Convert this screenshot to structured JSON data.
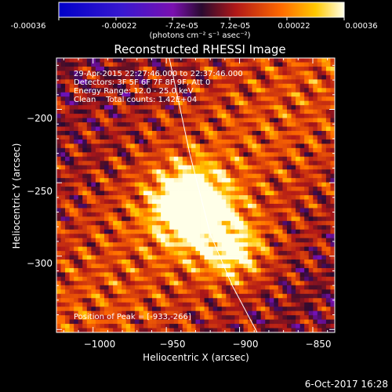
{
  "colorbar": {
    "ticks": [
      "-0.00036",
      "-0.00022",
      "-7.2e-05",
      "7.2e-05",
      "0.00022",
      "0.00036"
    ],
    "unit_label": "(photons cm⁻² s⁻¹ asec⁻²)"
  },
  "chart_data": {
    "type": "heatmap",
    "title": "Reconstructed RHESSI Image",
    "xlabel": "Heliocentric X (arcsec)",
    "ylabel": "Heliocentric Y (arcsec)",
    "xlim": [
      -1025,
      -835
    ],
    "ylim": [
      -352,
      -165
    ],
    "x_ticks": [
      -1000,
      -950,
      -900,
      -850
    ],
    "y_ticks": [
      -200,
      -250,
      -300
    ],
    "x_tick_labels": [
      "−1000",
      "−950",
      "−900",
      "−850"
    ],
    "y_tick_labels": [
      "−200",
      "−250",
      "−300"
    ],
    "colorscale_range": [
      -0.00036,
      0.00036
    ],
    "peak": [
      -933,
      -266
    ],
    "secondary_source": [
      -905,
      -296
    ],
    "limb_curve": [
      [
        -948,
        -165
      ],
      [
        -934,
        -230
      ],
      [
        -920,
        -285
      ],
      [
        -905,
        -320
      ],
      [
        -888,
        -352
      ]
    ],
    "annotations": [
      "29-Apr-2015 22:27:46.000 to 22:37:46.000",
      "Detectors: 3F 5F 6F 7F 8F 9F, Att 0",
      "Energy Range: 12.0 - 25.0 keV",
      "Clean    Total counts: 1.42E+04",
      "Position of Peak = [-933,-266]"
    ]
  },
  "footer": {
    "date": "6-Oct-2017 16:28"
  }
}
